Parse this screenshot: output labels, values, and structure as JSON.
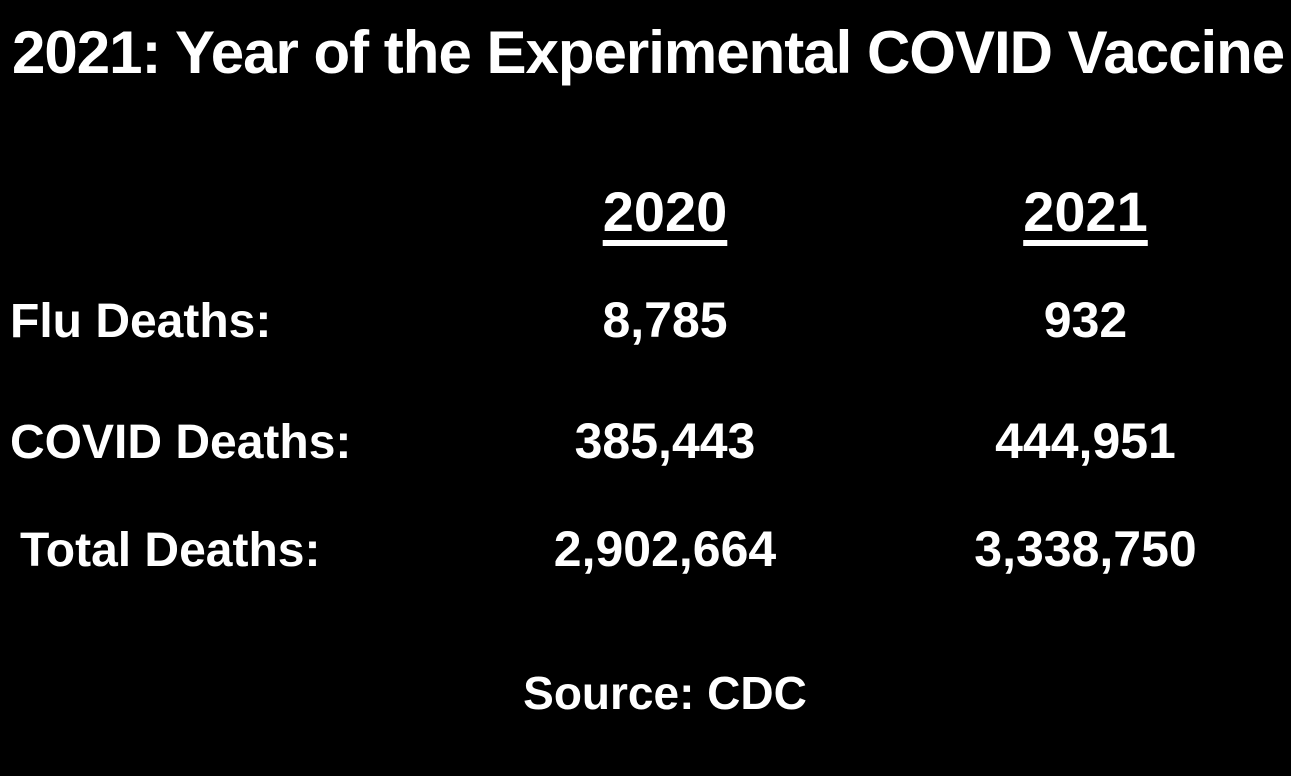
{
  "title": "2021: Year of the Experimental COVID Vaccine",
  "columns": {
    "c2020": "2020",
    "c2021": "2021"
  },
  "rows": [
    {
      "label": "Flu Deaths:",
      "y2020": "8,785",
      "y2021": "932"
    },
    {
      "label": "COVID Deaths:",
      "y2020": "385,443",
      "y2021": "444,951"
    },
    {
      "label": "Total Deaths:",
      "y2020": "2,902,664",
      "y2021": "3,338,750"
    }
  ],
  "source": "Source: CDC",
  "colors": {
    "background": "#000000",
    "text": "#ffffff"
  },
  "chart_data": {
    "type": "table",
    "title": "2021: Year of the Experimental COVID Vaccine",
    "categories": [
      "Flu Deaths",
      "COVID Deaths",
      "Total Deaths"
    ],
    "series": [
      {
        "name": "2020",
        "values": [
          8785,
          385443,
          2902664
        ]
      },
      {
        "name": "2021",
        "values": [
          932,
          444951,
          3338750
        ]
      }
    ],
    "source": "Source: CDC",
    "layout_hints": {
      "background": "black",
      "text_color": "white",
      "column_headers_underlined": true,
      "grid": false
    }
  }
}
